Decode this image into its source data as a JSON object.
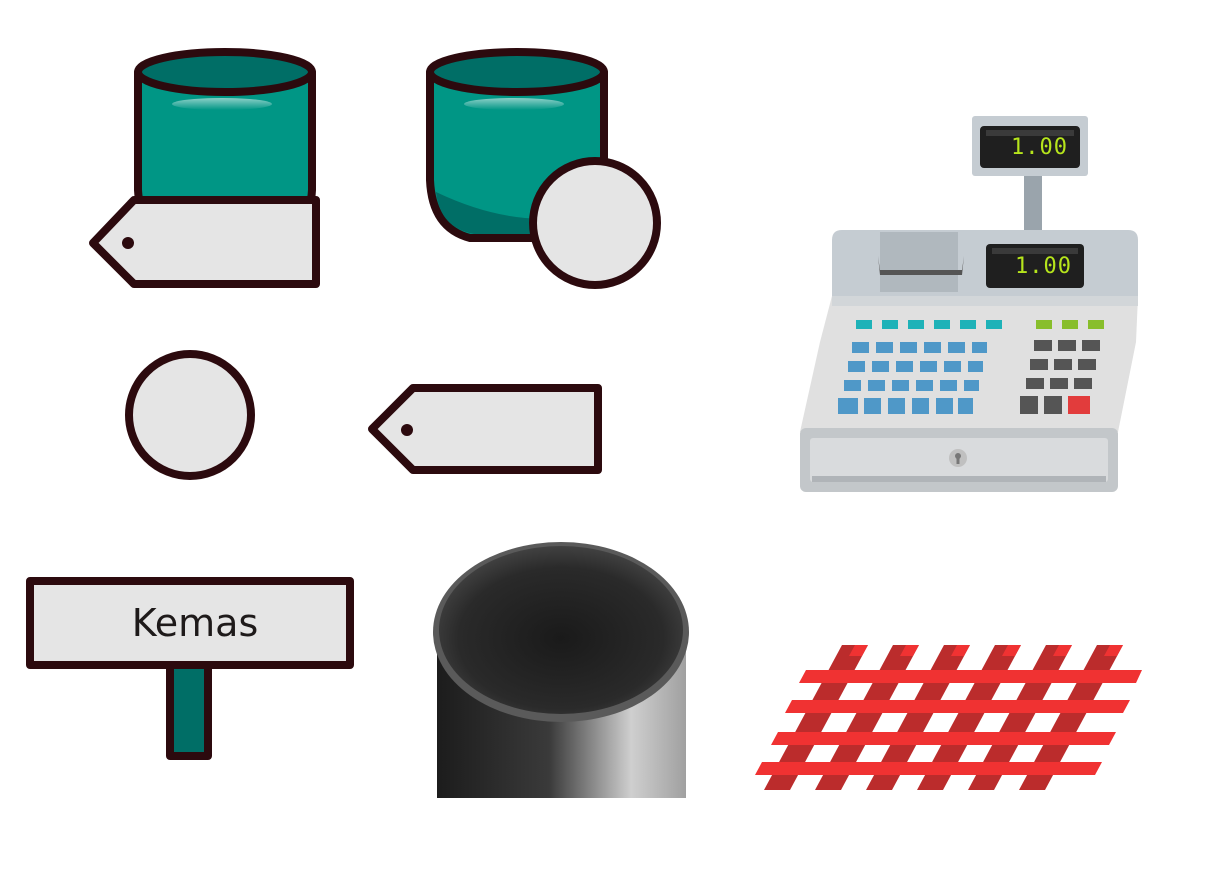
{
  "sign": {
    "label": "Kemas"
  },
  "cash_register": {
    "top_display": "1.00",
    "main_display": "1.00"
  },
  "colors": {
    "teal": "#009685",
    "teal_dark": "#006e66",
    "outline": "#2c0a0e",
    "tag_fill": "#e5e5e5",
    "red_mesh": "#f03232",
    "red_mesh_dark": "#bb2c2c",
    "register_body": "#e0e0e0",
    "register_key_blue": "#4f98c8",
    "register_key_cyan": "#1eb2b8",
    "register_key_green": "#88be2c",
    "register_key_red": "#e23c3c"
  },
  "icons": [
    "teal-cup-with-tag-icon",
    "teal-cup-with-coin-icon",
    "coin-icon",
    "price-tag-icon",
    "cash-register-icon",
    "signpost-icon",
    "black-cylinder-icon",
    "red-mesh-icon"
  ]
}
